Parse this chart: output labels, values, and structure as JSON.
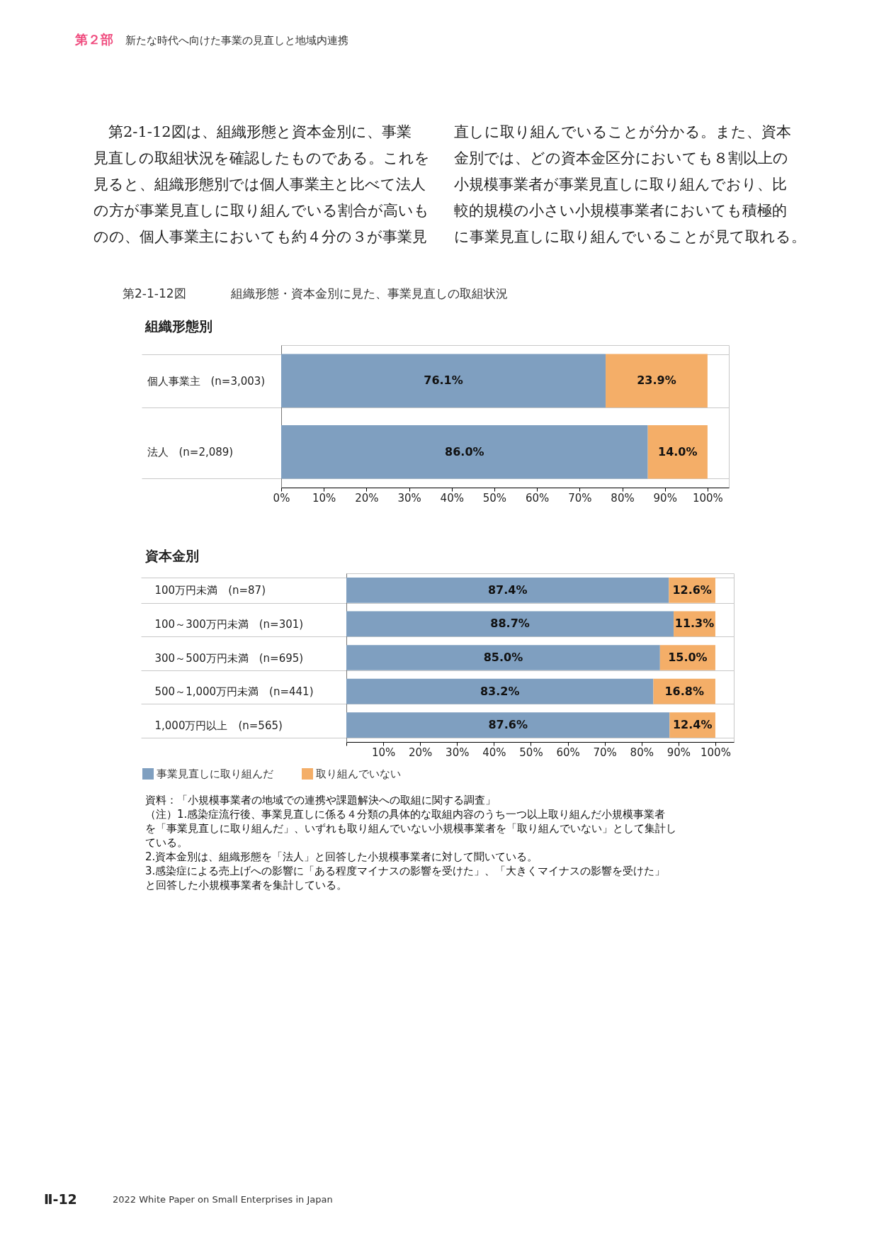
{
  "chart_data": [
    {
      "type": "bar",
      "title": "組織形態・資本金別に見た、事業見直しの取組状況",
      "subtitle": "組織形態別",
      "annotations": [
        "第２部",
        "新たな時代へ向けた事業の見直しと地域内連携",
        "第2-1-12図は、組織形態と資本金別に、事業見直しの取組状況を確認したものである。これを見ると、組織形態別では個人事業主と比べて法人の方が事業見直しに取り組んでいる割合が高いものの、個人事業主においても約４分の３が事業見直しに取り組んでいることが分かる。また、資本金別では、どの資本金区分においても８割以上の小規模事業者が事業見直しに取り組んでおり、比較的規模の小さい小規模事業者においても積極的に事業見直しに取り組んでいることが見て取れる。",
        "第2-1-12図"
      ],
      "categories": [
        "個人事業主　(n=3,003)",
        "法人　(n=2,089)"
      ],
      "series": [
        {
          "color": "#7f9fc0",
          "values": [
            76.1,
            86.0
          ],
          "value_labels": [
            "76.1%",
            "86.0%"
          ]
        },
        {
          "color": "#f4ae68",
          "values": [
            23.9,
            14.0
          ],
          "value_labels": [
            "23.9%",
            "14.0%"
          ]
        }
      ],
      "orientation": "horizontal",
      "stacked": true,
      "xlim": [
        0,
        105
      ],
      "xticks": [
        {
          "value": 0,
          "label": "0%"
        },
        {
          "value": 10,
          "label": "10%"
        },
        {
          "value": 20,
          "label": "20%"
        },
        {
          "value": 30,
          "label": "30%"
        },
        {
          "value": 40,
          "label": "40%"
        },
        {
          "value": 50,
          "label": "50%"
        },
        {
          "value": 60,
          "label": "60%"
        },
        {
          "value": 70,
          "label": "70%"
        },
        {
          "value": 80,
          "label": "80%"
        },
        {
          "value": 90,
          "label": "90%"
        },
        {
          "value": 100,
          "label": "100%"
        }
      ],
      "grid": "y"
    },
    {
      "type": "bar",
      "title": "資本金別",
      "annotations": [
        "資料：「小規模事業者の地域での連携や課題解決への取組に関する調査」",
        "（注）1.感染症流行後、事業見直しに係る４分類の具体的な取組内容のうち一つ以上取り組んだ小規模事業者を「事業見直しに取り組んだ」、いずれも取り組んでいない小規模事業者を「取り組んでいない」として集計している。",
        "2.資本金別は、組織形態を「法人」と回答した小規模事業者に対して聞いている。",
        "3.感染症による売上げへの影響に「ある程度マイナスの影響を受けた」、「大きくマイナスの影響を受けた」と回答した小規模事業者を集計している。",
        "Ⅱ-12",
        "2022 White Paper on Small Enterprises in Japan"
      ],
      "categories": [
        "100万円未満　(n=87)",
        "100～300万円未満　(n=301)",
        "300～500万円未満　(n=695)",
        "500～1,000万円未満　(n=441)",
        "1,000万円以上　(n=565)"
      ],
      "series": [
        {
          "name": "事業見直しに取り組んだ",
          "color": "#7f9fc0",
          "values": [
            87.4,
            88.7,
            85.0,
            83.2,
            87.6
          ],
          "value_labels": [
            "87.4%",
            "88.7%",
            "85.0%",
            "83.2%",
            "87.6%"
          ]
        },
        {
          "name": "取り組んでいない",
          "color": "#f4ae68",
          "values": [
            12.6,
            11.3,
            15.0,
            16.8,
            12.4
          ],
          "value_labels": [
            "12.6%",
            "11.3%",
            "15.0%",
            "16.8%",
            "12.4%"
          ]
        }
      ],
      "orientation": "horizontal",
      "stacked": true,
      "xlim": [
        0,
        105
      ],
      "xticks": [
        {
          "value": 0,
          "label": null
        },
        {
          "value": 10,
          "label": "10%"
        },
        {
          "value": 20,
          "label": "20%"
        },
        {
          "value": 30,
          "label": "30%"
        },
        {
          "value": 40,
          "label": "40%"
        },
        {
          "value": 50,
          "label": "50%"
        },
        {
          "value": 60,
          "label": "60%"
        },
        {
          "value": 70,
          "label": "70%"
        },
        {
          "value": 80,
          "label": "80%"
        },
        {
          "value": 90,
          "label": "90%"
        },
        {
          "value": 100,
          "label": "100%"
        }
      ],
      "grid": "y",
      "legend": "bottom left"
    }
  ]
}
